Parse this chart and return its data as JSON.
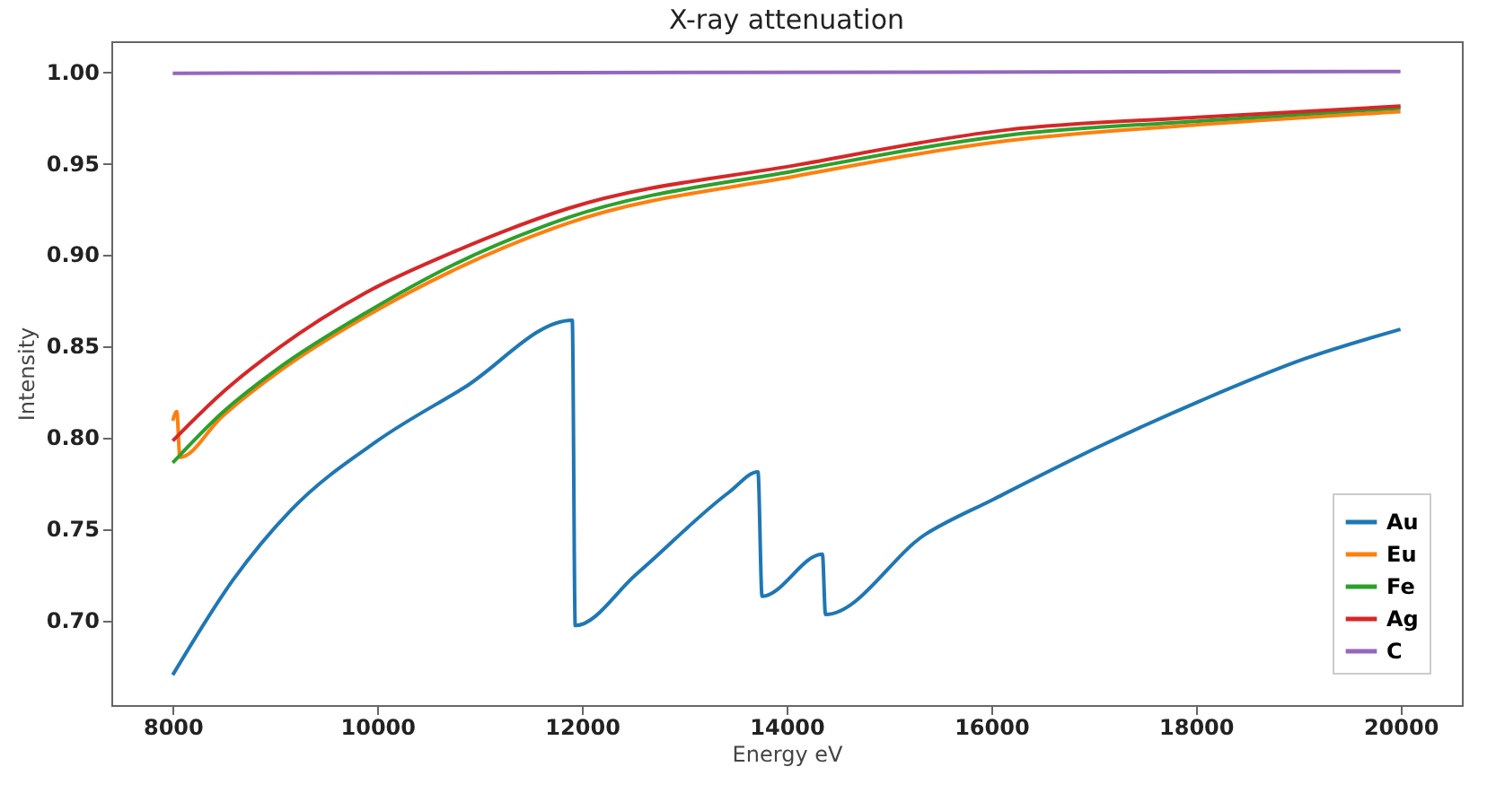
{
  "chart_data": {
    "type": "line",
    "title": "X-ray attenuation",
    "xlabel": "Energy eV",
    "ylabel": "Intensity",
    "xlim": [
      7400,
      20600
    ],
    "ylim": [
      0.6535,
      1.0165
    ],
    "xticks": [
      8000,
      10000,
      12000,
      14000,
      16000,
      18000,
      20000
    ],
    "yticks": [
      {
        "value": 0.7,
        "label": "0.70"
      },
      {
        "value": 0.75,
        "label": "0.75"
      },
      {
        "value": 0.8,
        "label": "0.80"
      },
      {
        "value": 0.85,
        "label": "0.85"
      },
      {
        "value": 0.9,
        "label": "0.90"
      },
      {
        "value": 0.95,
        "label": "0.95"
      },
      {
        "value": 1.0,
        "label": "1.00"
      }
    ],
    "grid": false,
    "legend": "bottom right",
    "marker": "none",
    "line_style": "solid",
    "series": [
      {
        "name": "Au",
        "color": "#1f77b4",
        "x": [
          8000,
          8590,
          9154,
          10000,
          10846,
          11905,
          11934,
          12530,
          13440,
          13720,
          13760,
          14350,
          14380,
          15360,
          16020,
          17060,
          18050,
          19070,
          20000
        ],
        "values": [
          0.67,
          0.722,
          0.76,
          0.798,
          0.827,
          0.864,
          0.697,
          0.725,
          0.77,
          0.781,
          0.713,
          0.736,
          0.703,
          0.747,
          0.766,
          0.795,
          0.82,
          0.843,
          0.859
        ]
      },
      {
        "name": "Eu",
        "color": "#ff7f0e",
        "x": [
          8000,
          8040,
          8070,
          8477,
          9041,
          9887,
          10733,
          11861,
          14116,
          16147,
          18060,
          20000
        ],
        "values": [
          0.809,
          0.814,
          0.789,
          0.811,
          0.836,
          0.866,
          0.891,
          0.917,
          0.943,
          0.962,
          0.971,
          0.978
        ]
      },
      {
        "name": "Fe",
        "color": "#2ca02c",
        "x": [
          8000,
          8477,
          9041,
          9887,
          10733,
          11861,
          14116,
          16147,
          18060,
          20000
        ],
        "values": [
          0.786,
          0.813,
          0.838,
          0.868,
          0.894,
          0.92,
          0.946,
          0.965,
          0.973,
          0.98
        ]
      },
      {
        "name": "Ag",
        "color": "#d62728",
        "x": [
          8000,
          8477,
          9041,
          9887,
          10733,
          11861,
          14116,
          16147,
          18060,
          20000
        ],
        "values": [
          0.798,
          0.824,
          0.849,
          0.879,
          0.901,
          0.925,
          0.949,
          0.968,
          0.975,
          0.981
        ]
      },
      {
        "name": "C",
        "color": "#9467bd",
        "x": [
          8000,
          20000
        ],
        "values": [
          0.999,
          1.0
        ]
      }
    ]
  }
}
